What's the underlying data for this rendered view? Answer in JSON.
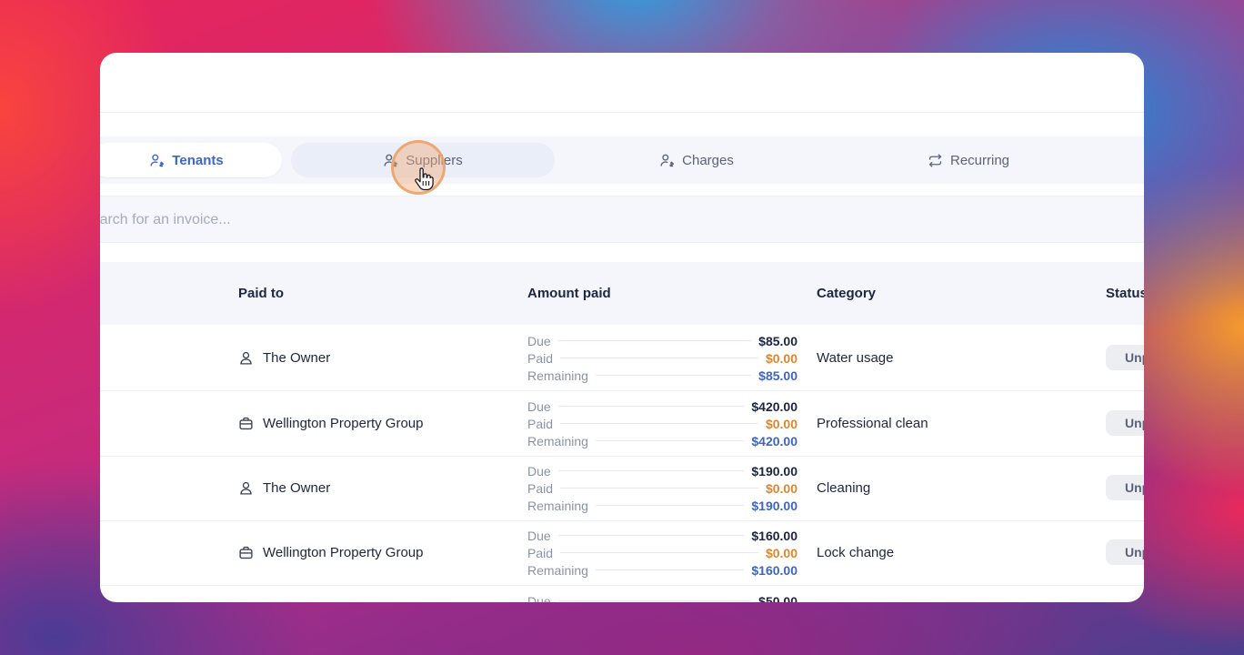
{
  "tabs": [
    {
      "label": "Tenants",
      "icon": "user-dollar-icon",
      "state": "active"
    },
    {
      "label": "Suppliers",
      "icon": "user-dollar-icon",
      "state": "hover"
    },
    {
      "label": "Charges",
      "icon": "user-dollar-icon",
      "state": "normal"
    },
    {
      "label": "Recurring",
      "icon": "repeat-icon",
      "state": "normal"
    }
  ],
  "search": {
    "placeholder": "Search for an invoice..."
  },
  "table": {
    "headers": {
      "paid_to": "Paid to",
      "amount_paid": "Amount paid",
      "category": "Category",
      "status": "Status"
    },
    "amount_labels": {
      "due": "Due",
      "paid": "Paid",
      "remaining": "Remaining"
    },
    "rows": [
      {
        "paid_to": "The Owner",
        "paid_to_icon": "user-icon",
        "due": "$85.00",
        "paid": "$0.00",
        "remaining": "$85.00",
        "category": "Water usage",
        "status": "Unpaid"
      },
      {
        "paid_to": "Wellington Property Group",
        "paid_to_icon": "briefcase-icon",
        "due": "$420.00",
        "paid": "$0.00",
        "remaining": "$420.00",
        "category": "Professional clean",
        "status": "Unpaid"
      },
      {
        "paid_to": "The Owner",
        "paid_to_icon": "user-icon",
        "due": "$190.00",
        "paid": "$0.00",
        "remaining": "$190.00",
        "category": "Cleaning",
        "status": "Unpaid"
      },
      {
        "paid_to": "Wellington Property Group",
        "paid_to_icon": "briefcase-icon",
        "due": "$160.00",
        "paid": "$0.00",
        "remaining": "$160.00",
        "category": "Lock change",
        "status": "Unpaid"
      },
      {
        "paid_to": "",
        "paid_to_icon": "",
        "due": "$50.00",
        "paid": "",
        "remaining": "",
        "category": "",
        "status": ""
      }
    ]
  },
  "colors": {
    "accent": "#3d66c4",
    "paid": "#e0862a",
    "text": "#1d2640",
    "muted": "#8a92a8"
  }
}
